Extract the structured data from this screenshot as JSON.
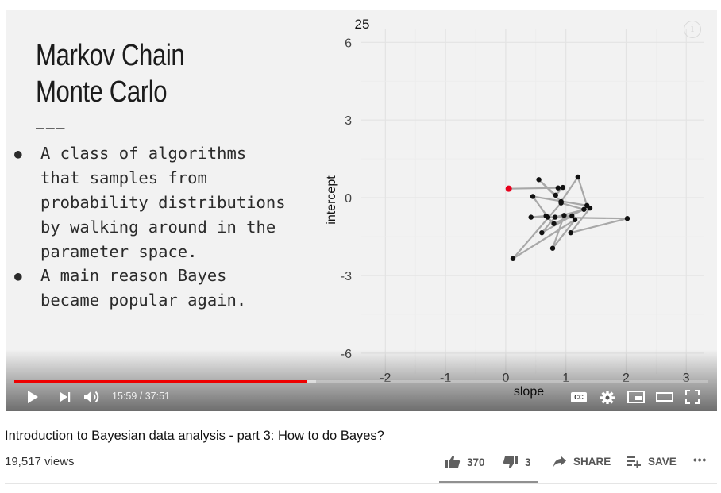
{
  "slide": {
    "title": "Markov Chain\nMonte Carlo",
    "rule": "———",
    "bullets": [
      "A class of algorithms\nthat samples from\nprobability distributions\nby walking around in the\nparameter space.",
      "A main reason Bayes\nbecame popular again."
    ],
    "bullet_marker": "●"
  },
  "chart_data": {
    "type": "scatter",
    "frame_label": "25",
    "xlabel": "slope",
    "ylabel": "intercept",
    "xlim": [
      -2.4,
      3.3
    ],
    "ylim": [
      -6.8,
      6.5
    ],
    "x_ticks": [
      -2,
      -1,
      0,
      1,
      2,
      3
    ],
    "y_ticks": [
      6,
      3,
      0,
      -3,
      -6
    ],
    "grid": true,
    "path_color": "#a8a8a8",
    "point_color": "#111111",
    "current_point_color": "#e8001c",
    "points": [
      {
        "x": 0.05,
        "y": 0.35
      },
      {
        "x": 0.87,
        "y": 0.38
      },
      {
        "x": 0.95,
        "y": 0.4
      },
      {
        "x": 0.83,
        "y": 0.1
      },
      {
        "x": 0.55,
        "y": 0.7
      },
      {
        "x": 0.92,
        "y": -0.15
      },
      {
        "x": 1.2,
        "y": 0.8
      },
      {
        "x": 1.35,
        "y": -0.3
      },
      {
        "x": 0.45,
        "y": 0.05
      },
      {
        "x": 0.7,
        "y": -0.75
      },
      {
        "x": 1.1,
        "y": -0.7
      },
      {
        "x": 0.6,
        "y": -1.35
      },
      {
        "x": 0.82,
        "y": -0.75
      },
      {
        "x": 1.4,
        "y": -0.4
      },
      {
        "x": 1.08,
        "y": -1.35
      },
      {
        "x": 2.02,
        "y": -0.8
      },
      {
        "x": 0.42,
        "y": -0.75
      },
      {
        "x": 0.67,
        "y": -0.7
      },
      {
        "x": 0.8,
        "y": -1.0
      },
      {
        "x": 1.3,
        "y": -0.45
      },
      {
        "x": 0.92,
        "y": -0.2
      },
      {
        "x": 0.12,
        "y": -2.35
      },
      {
        "x": 1.15,
        "y": -0.85
      },
      {
        "x": 0.78,
        "y": -1.95
      },
      {
        "x": 0.97,
        "y": -0.68
      }
    ]
  },
  "player": {
    "time_current": "15:59",
    "time_total": "37:51",
    "progress_fraction": 0.422,
    "info_icon": "i",
    "controls": [
      "play-icon",
      "next-icon",
      "volume-icon",
      "subtitles-icon",
      "settings-icon",
      "miniplayer-icon",
      "theater-icon",
      "fullscreen-icon"
    ],
    "cc_label": "CC"
  },
  "video": {
    "title": "Introduction to Bayesian data analysis - part 3: How to do Bayes?",
    "views": "19,517 views",
    "likes": "370",
    "dislikes": "3",
    "share_label": "SHARE",
    "save_label": "SAVE",
    "more_label": "•••"
  }
}
